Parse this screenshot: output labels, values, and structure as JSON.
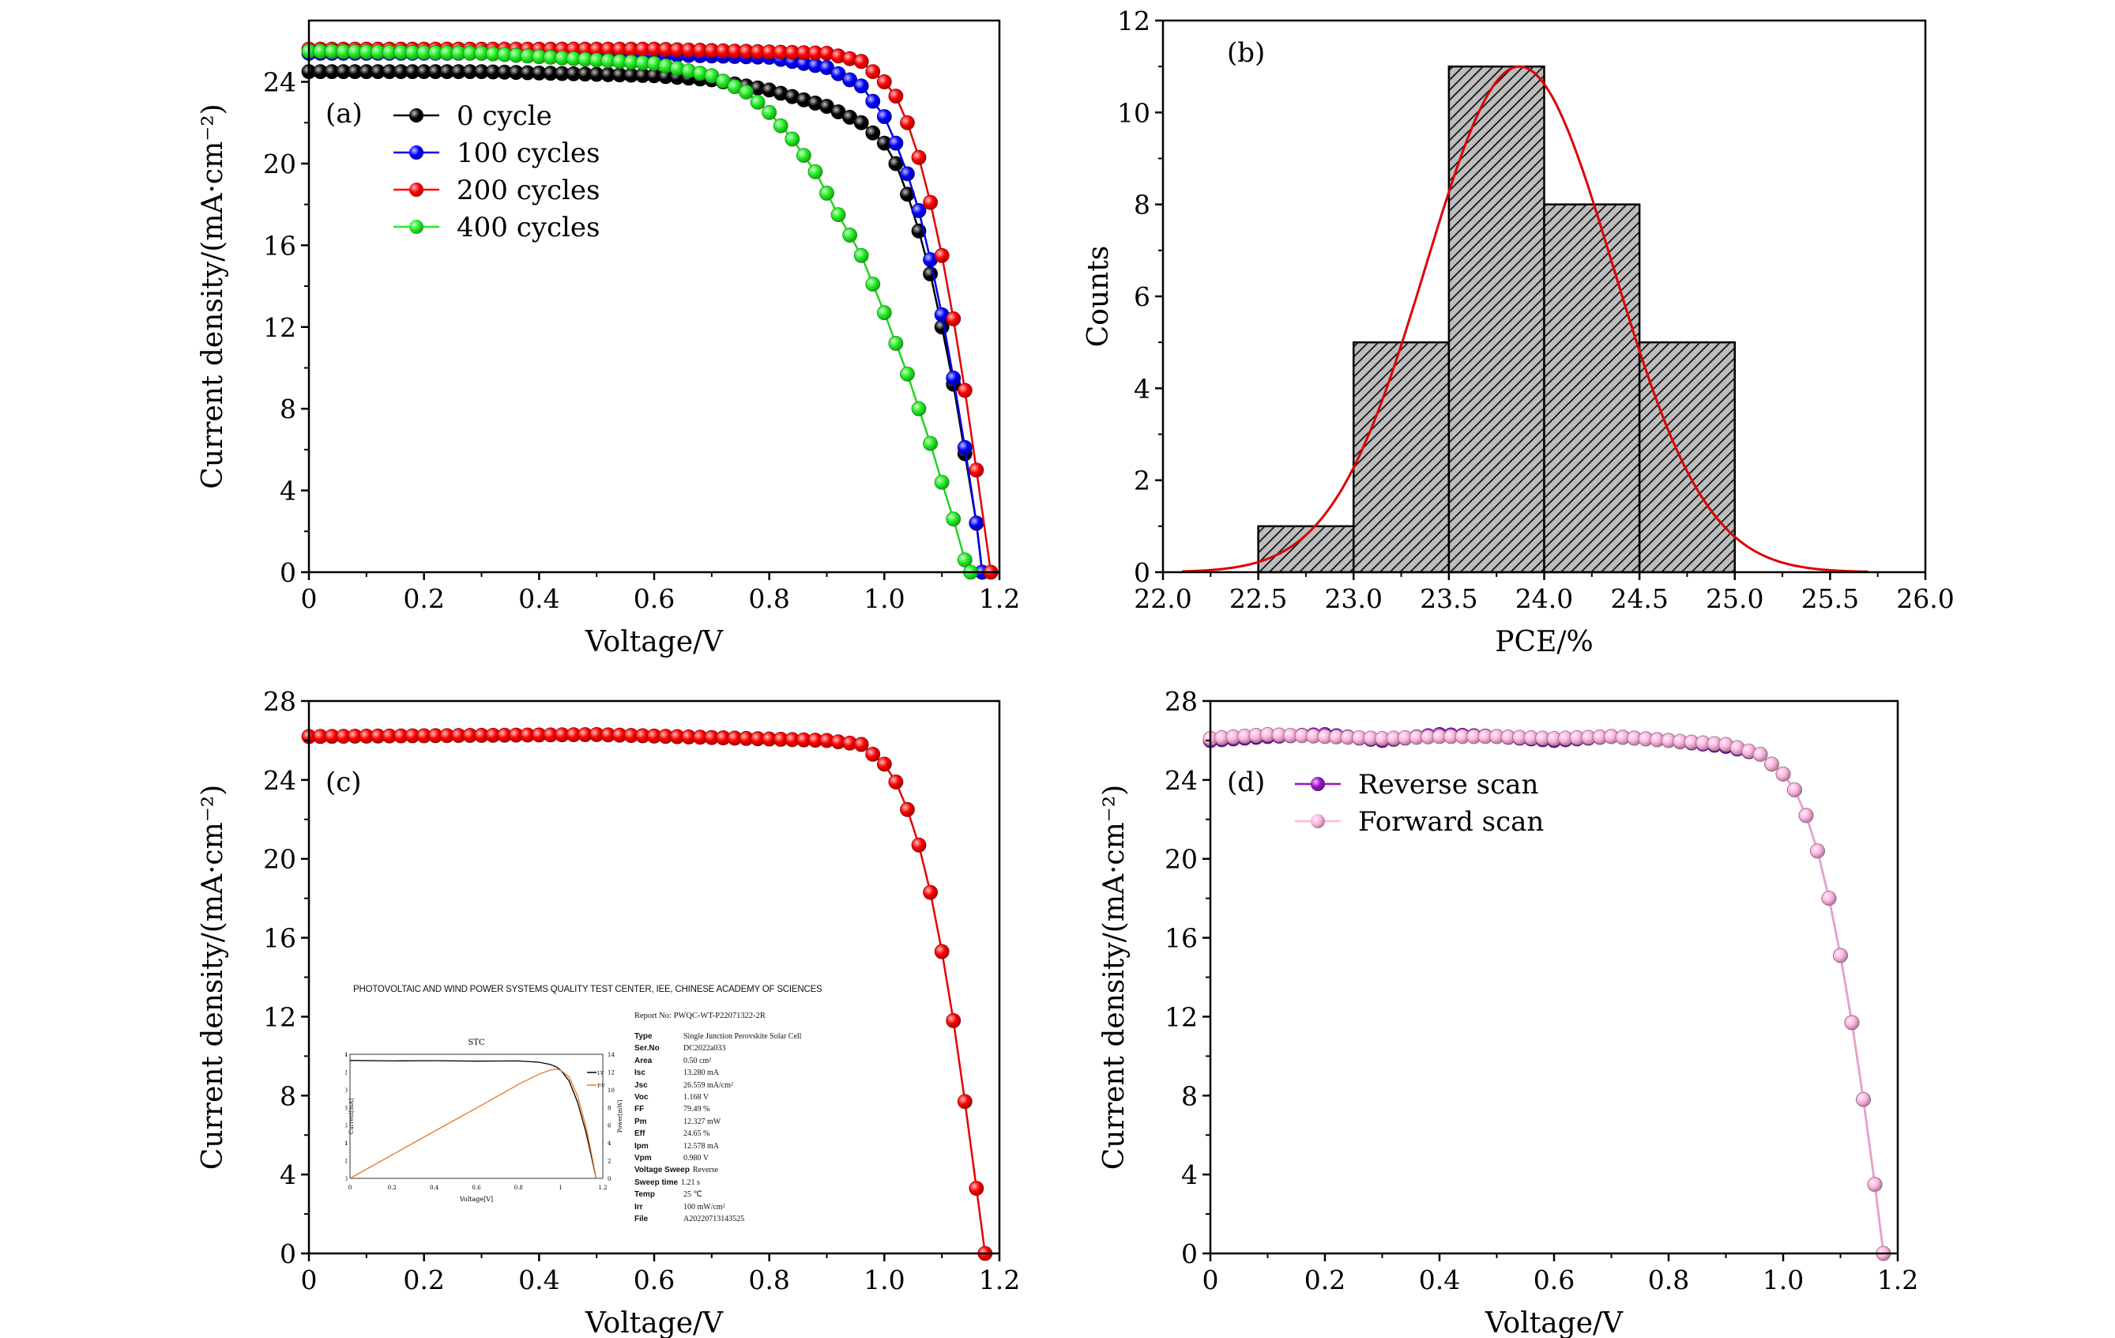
{
  "chart_data": [
    {
      "panel": "(a)",
      "type": "line",
      "xlabel": "Voltage/V",
      "ylabel": "Current density/(mA·cm⁻²)",
      "xlim": [
        0,
        1.2
      ],
      "ylim": [
        0,
        27
      ],
      "xticks": [
        0,
        0.2,
        0.4,
        0.6,
        0.8,
        1.0,
        1.2
      ],
      "xtick_labels": [
        "0",
        "0.2",
        "0.4",
        "0.6",
        "0.8",
        "1.0",
        "1.2"
      ],
      "yticks": [
        0,
        4,
        8,
        12,
        16,
        20,
        24
      ],
      "grid": false,
      "legend": "top-left",
      "series": [
        {
          "name": "0 cycle",
          "color": "#000000",
          "points": [
            [
              0,
              24.5
            ],
            [
              0.3,
              24.5
            ],
            [
              0.6,
              24.3
            ],
            [
              0.7,
              24.1
            ],
            [
              0.8,
              23.6
            ],
            [
              0.9,
              22.8
            ],
            [
              0.96,
              22.0
            ],
            [
              1.0,
              21.0
            ],
            [
              1.02,
              20.0
            ],
            [
              1.04,
              18.5
            ],
            [
              1.06,
              16.7
            ],
            [
              1.08,
              14.6
            ],
            [
              1.1,
              12.0
            ],
            [
              1.12,
              9.2
            ],
            [
              1.14,
              5.8
            ],
            [
              1.16,
              2.4
            ],
            [
              1.17,
              0
            ]
          ]
        },
        {
          "name": "100 cycles",
          "color": "#0000ff",
          "points": [
            [
              0,
              25.4
            ],
            [
              0.5,
              25.4
            ],
            [
              0.8,
              25.2
            ],
            [
              0.9,
              24.7
            ],
            [
              0.96,
              23.8
            ],
            [
              1.0,
              22.3
            ],
            [
              1.02,
              21.0
            ],
            [
              1.04,
              19.5
            ],
            [
              1.06,
              17.7
            ],
            [
              1.08,
              15.3
            ],
            [
              1.1,
              12.6
            ],
            [
              1.12,
              9.5
            ],
            [
              1.14,
              6.1
            ],
            [
              1.16,
              2.4
            ],
            [
              1.17,
              0
            ]
          ]
        },
        {
          "name": "200 cycles",
          "color": "#ff0000",
          "points": [
            [
              0,
              25.6
            ],
            [
              0.6,
              25.6
            ],
            [
              0.9,
              25.4
            ],
            [
              0.96,
              25.0
            ],
            [
              1.0,
              24.0
            ],
            [
              1.02,
              23.3
            ],
            [
              1.04,
              22.0
            ],
            [
              1.06,
              20.3
            ],
            [
              1.08,
              18.1
            ],
            [
              1.1,
              15.5
            ],
            [
              1.12,
              12.4
            ],
            [
              1.14,
              8.9
            ],
            [
              1.16,
              5.0
            ],
            [
              1.18,
              1.0
            ],
            [
              1.185,
              0
            ]
          ]
        },
        {
          "name": "400 cycles",
          "color": "#22ee22",
          "points": [
            [
              0,
              25.5
            ],
            [
              0.3,
              25.4
            ],
            [
              0.6,
              24.9
            ],
            [
              0.7,
              24.3
            ],
            [
              0.76,
              23.5
            ],
            [
              0.8,
              22.5
            ],
            [
              0.84,
              21.2
            ],
            [
              0.88,
              19.6
            ],
            [
              0.92,
              17.5
            ],
            [
              0.96,
              15.5
            ],
            [
              0.98,
              14.1
            ],
            [
              1.0,
              12.7
            ],
            [
              1.02,
              11.2
            ],
            [
              1.04,
              9.7
            ],
            [
              1.06,
              8.0
            ],
            [
              1.08,
              6.3
            ],
            [
              1.1,
              4.4
            ],
            [
              1.12,
              2.6
            ],
            [
              1.14,
              0.6
            ],
            [
              1.15,
              0
            ]
          ]
        }
      ]
    },
    {
      "panel": "(b)",
      "type": "bar",
      "xlabel": "PCE/%",
      "ylabel": "Counts",
      "xlim": [
        22.0,
        26.0
      ],
      "ylim": [
        0,
        12
      ],
      "xticks": [
        22.0,
        22.5,
        23.0,
        23.5,
        24.0,
        24.5,
        25.0,
        25.5,
        26.0
      ],
      "xtick_labels": [
        "22.0",
        "22.5",
        "23.0",
        "23.5",
        "24.0",
        "24.5",
        "25.0",
        "25.5",
        "26.0"
      ],
      "yticks": [
        0,
        2,
        4,
        6,
        8,
        10,
        12
      ],
      "grid": false,
      "bins": [
        [
          22.5,
          23.0
        ],
        [
          23.0,
          23.5
        ],
        [
          23.5,
          24.0
        ],
        [
          24.0,
          24.5
        ],
        [
          24.5,
          25.0
        ]
      ],
      "values": [
        1,
        5,
        11,
        8,
        5
      ],
      "bar_fill": "hatched gray",
      "fit": {
        "type": "gaussian",
        "color": "#dd0000",
        "peak": 11,
        "mean": 23.87,
        "sigma": 0.49,
        "range": [
          22.1,
          25.7
        ]
      }
    },
    {
      "panel": "(c)",
      "type": "line",
      "xlabel": "Voltage/V",
      "ylabel": "Current density/(mA·cm⁻²)",
      "xlim": [
        0,
        1.2
      ],
      "ylim": [
        0,
        28
      ],
      "xticks": [
        0,
        0.2,
        0.4,
        0.6,
        0.8,
        1.0,
        1.2
      ],
      "xtick_labels": [
        "0",
        "0.2",
        "0.4",
        "0.6",
        "0.8",
        "1.0",
        "1.2"
      ],
      "yticks": [
        0,
        4,
        8,
        12,
        16,
        20,
        24,
        28
      ],
      "grid": false,
      "series": [
        {
          "color": "#ff0000",
          "points": [
            [
              0,
              26.2
            ],
            [
              0.5,
              26.3
            ],
            [
              0.9,
              26.0
            ],
            [
              0.96,
              25.8
            ],
            [
              1.0,
              24.8
            ],
            [
              1.02,
              23.9
            ],
            [
              1.04,
              22.5
            ],
            [
              1.06,
              20.7
            ],
            [
              1.08,
              18.3
            ],
            [
              1.1,
              15.3
            ],
            [
              1.12,
              11.8
            ],
            [
              1.14,
              7.7
            ],
            [
              1.16,
              3.3
            ],
            [
              1.175,
              0
            ]
          ]
        }
      ]
    },
    {
      "panel": "(d)",
      "type": "line",
      "xlabel": "Voltage/V",
      "ylabel": "Current density/(mA·cm⁻²)",
      "xlim": [
        0,
        1.2
      ],
      "ylim": [
        0,
        28
      ],
      "xticks": [
        0,
        0.2,
        0.4,
        0.6,
        0.8,
        1.0,
        1.2
      ],
      "xtick_labels": [
        "0",
        "0.2",
        "0.4",
        "0.6",
        "0.8",
        "1.0",
        "1.2"
      ],
      "yticks": [
        0,
        4,
        8,
        12,
        16,
        20,
        24,
        28
      ],
      "grid": false,
      "legend": "top-left",
      "series": [
        {
          "name": "Reverse scan",
          "color": "#9a10c8",
          "points": [
            [
              0,
              26.0
            ],
            [
              0.1,
              26.2
            ],
            [
              0.2,
              26.3
            ],
            [
              0.3,
              26.0
            ],
            [
              0.4,
              26.3
            ],
            [
              0.5,
              26.2
            ],
            [
              0.6,
              26.0
            ],
            [
              0.7,
              26.2
            ],
            [
              0.8,
              26.0
            ],
            [
              0.9,
              25.7
            ],
            [
              0.96,
              25.3
            ],
            [
              1.0,
              24.3
            ],
            [
              1.02,
              23.5
            ],
            [
              1.04,
              22.2
            ],
            [
              1.06,
              20.4
            ],
            [
              1.08,
              18.0
            ],
            [
              1.1,
              15.1
            ],
            [
              1.12,
              11.7
            ],
            [
              1.14,
              7.8
            ],
            [
              1.16,
              3.5
            ],
            [
              1.175,
              0
            ]
          ]
        },
        {
          "name": "Forward scan",
          "color": "#ffb6e1",
          "points": [
            [
              0,
              26.1
            ],
            [
              0.1,
              26.3
            ],
            [
              0.2,
              26.2
            ],
            [
              0.3,
              26.1
            ],
            [
              0.4,
              26.2
            ],
            [
              0.5,
              26.2
            ],
            [
              0.6,
              26.1
            ],
            [
              0.7,
              26.2
            ],
            [
              0.8,
              26.0
            ],
            [
              0.9,
              25.8
            ],
            [
              0.96,
              25.3
            ],
            [
              1.0,
              24.3
            ],
            [
              1.02,
              23.5
            ],
            [
              1.04,
              22.2
            ],
            [
              1.06,
              20.4
            ],
            [
              1.08,
              18.0
            ],
            [
              1.1,
              15.1
            ],
            [
              1.12,
              11.7
            ],
            [
              1.14,
              7.8
            ],
            [
              1.16,
              3.5
            ],
            [
              1.175,
              0
            ]
          ]
        }
      ]
    }
  ],
  "inset": {
    "header": "PHOTOVOLTAIC AND WIND POWER SYSTEMS QUALITY TEST CENTER, IEE, CHINESE ACADEMY OF SCIENCES",
    "report_no": "Report No: PWQC-WT-P22071322-2R",
    "plot": {
      "title": "STC",
      "xlabel": "Voltage[V]",
      "ylabel_left": "Current[mA]",
      "ylabel_right": "Power[mW]",
      "xlim": [
        0,
        1.2
      ],
      "ylim": [
        0,
        14
      ],
      "xtick_labels": [
        "0",
        "0.2",
        "0.4",
        "0.6",
        "0.8",
        "1",
        "1.2"
      ],
      "ytick_labels": [
        "0",
        "2",
        "4",
        "6",
        "8",
        "10",
        "12",
        "14"
      ],
      "legend": [
        "I-V",
        "P-V"
      ],
      "iv_color": "#000000",
      "pv_color": "#e87722",
      "iv_points": [
        [
          0,
          13.3
        ],
        [
          0.2,
          13.25
        ],
        [
          0.4,
          13.28
        ],
        [
          0.6,
          13.22
        ],
        [
          0.8,
          13.25
        ],
        [
          0.9,
          13.1
        ],
        [
          0.95,
          12.85
        ],
        [
          0.98,
          12.58
        ],
        [
          1.0,
          12.2
        ],
        [
          1.04,
          11.0
        ],
        [
          1.08,
          8.6
        ],
        [
          1.12,
          5.2
        ],
        [
          1.15,
          2.0
        ],
        [
          1.168,
          0
        ]
      ],
      "pv_points": [
        [
          0,
          0
        ],
        [
          0.2,
          2.65
        ],
        [
          0.4,
          5.31
        ],
        [
          0.6,
          7.93
        ],
        [
          0.8,
          10.6
        ],
        [
          0.9,
          11.79
        ],
        [
          0.95,
          12.21
        ],
        [
          0.98,
          12.33
        ],
        [
          1.0,
          12.2
        ],
        [
          1.04,
          11.44
        ],
        [
          1.08,
          9.29
        ],
        [
          1.12,
          5.82
        ],
        [
          1.15,
          2.3
        ],
        [
          1.168,
          0
        ]
      ]
    },
    "table": [
      {
        "key": "Type",
        "value": "Single Junction Perovskite Solar Cell"
      },
      {
        "key": "Ser.No",
        "value": "DC2022a033"
      },
      {
        "key": "Area",
        "value": "0.50  cm²"
      },
      {
        "key": "Isc",
        "value": "13.280  mA"
      },
      {
        "key": "Jsc",
        "value": "26.559  mA/cm²"
      },
      {
        "key": "Voc",
        "value": "1.168  V"
      },
      {
        "key": "FF",
        "value": "79.49  %"
      },
      {
        "key": "Pm",
        "value": "12.327  mW"
      },
      {
        "key": "Eff",
        "value": "24.65  %"
      },
      {
        "key": "Ipm",
        "value": "12.578  mA"
      },
      {
        "key": "Vpm",
        "value": "0.980  V"
      },
      {
        "key": "Voltage Sweep",
        "value": "Reverse"
      },
      {
        "key": "Sweep  time",
        "value": "1.21  s"
      },
      {
        "key": "Temp",
        "value": "25  ℃"
      },
      {
        "key": "Irr",
        "value": "100  mW/cm²"
      },
      {
        "key": "File",
        "value": "A20220713143525"
      }
    ]
  }
}
